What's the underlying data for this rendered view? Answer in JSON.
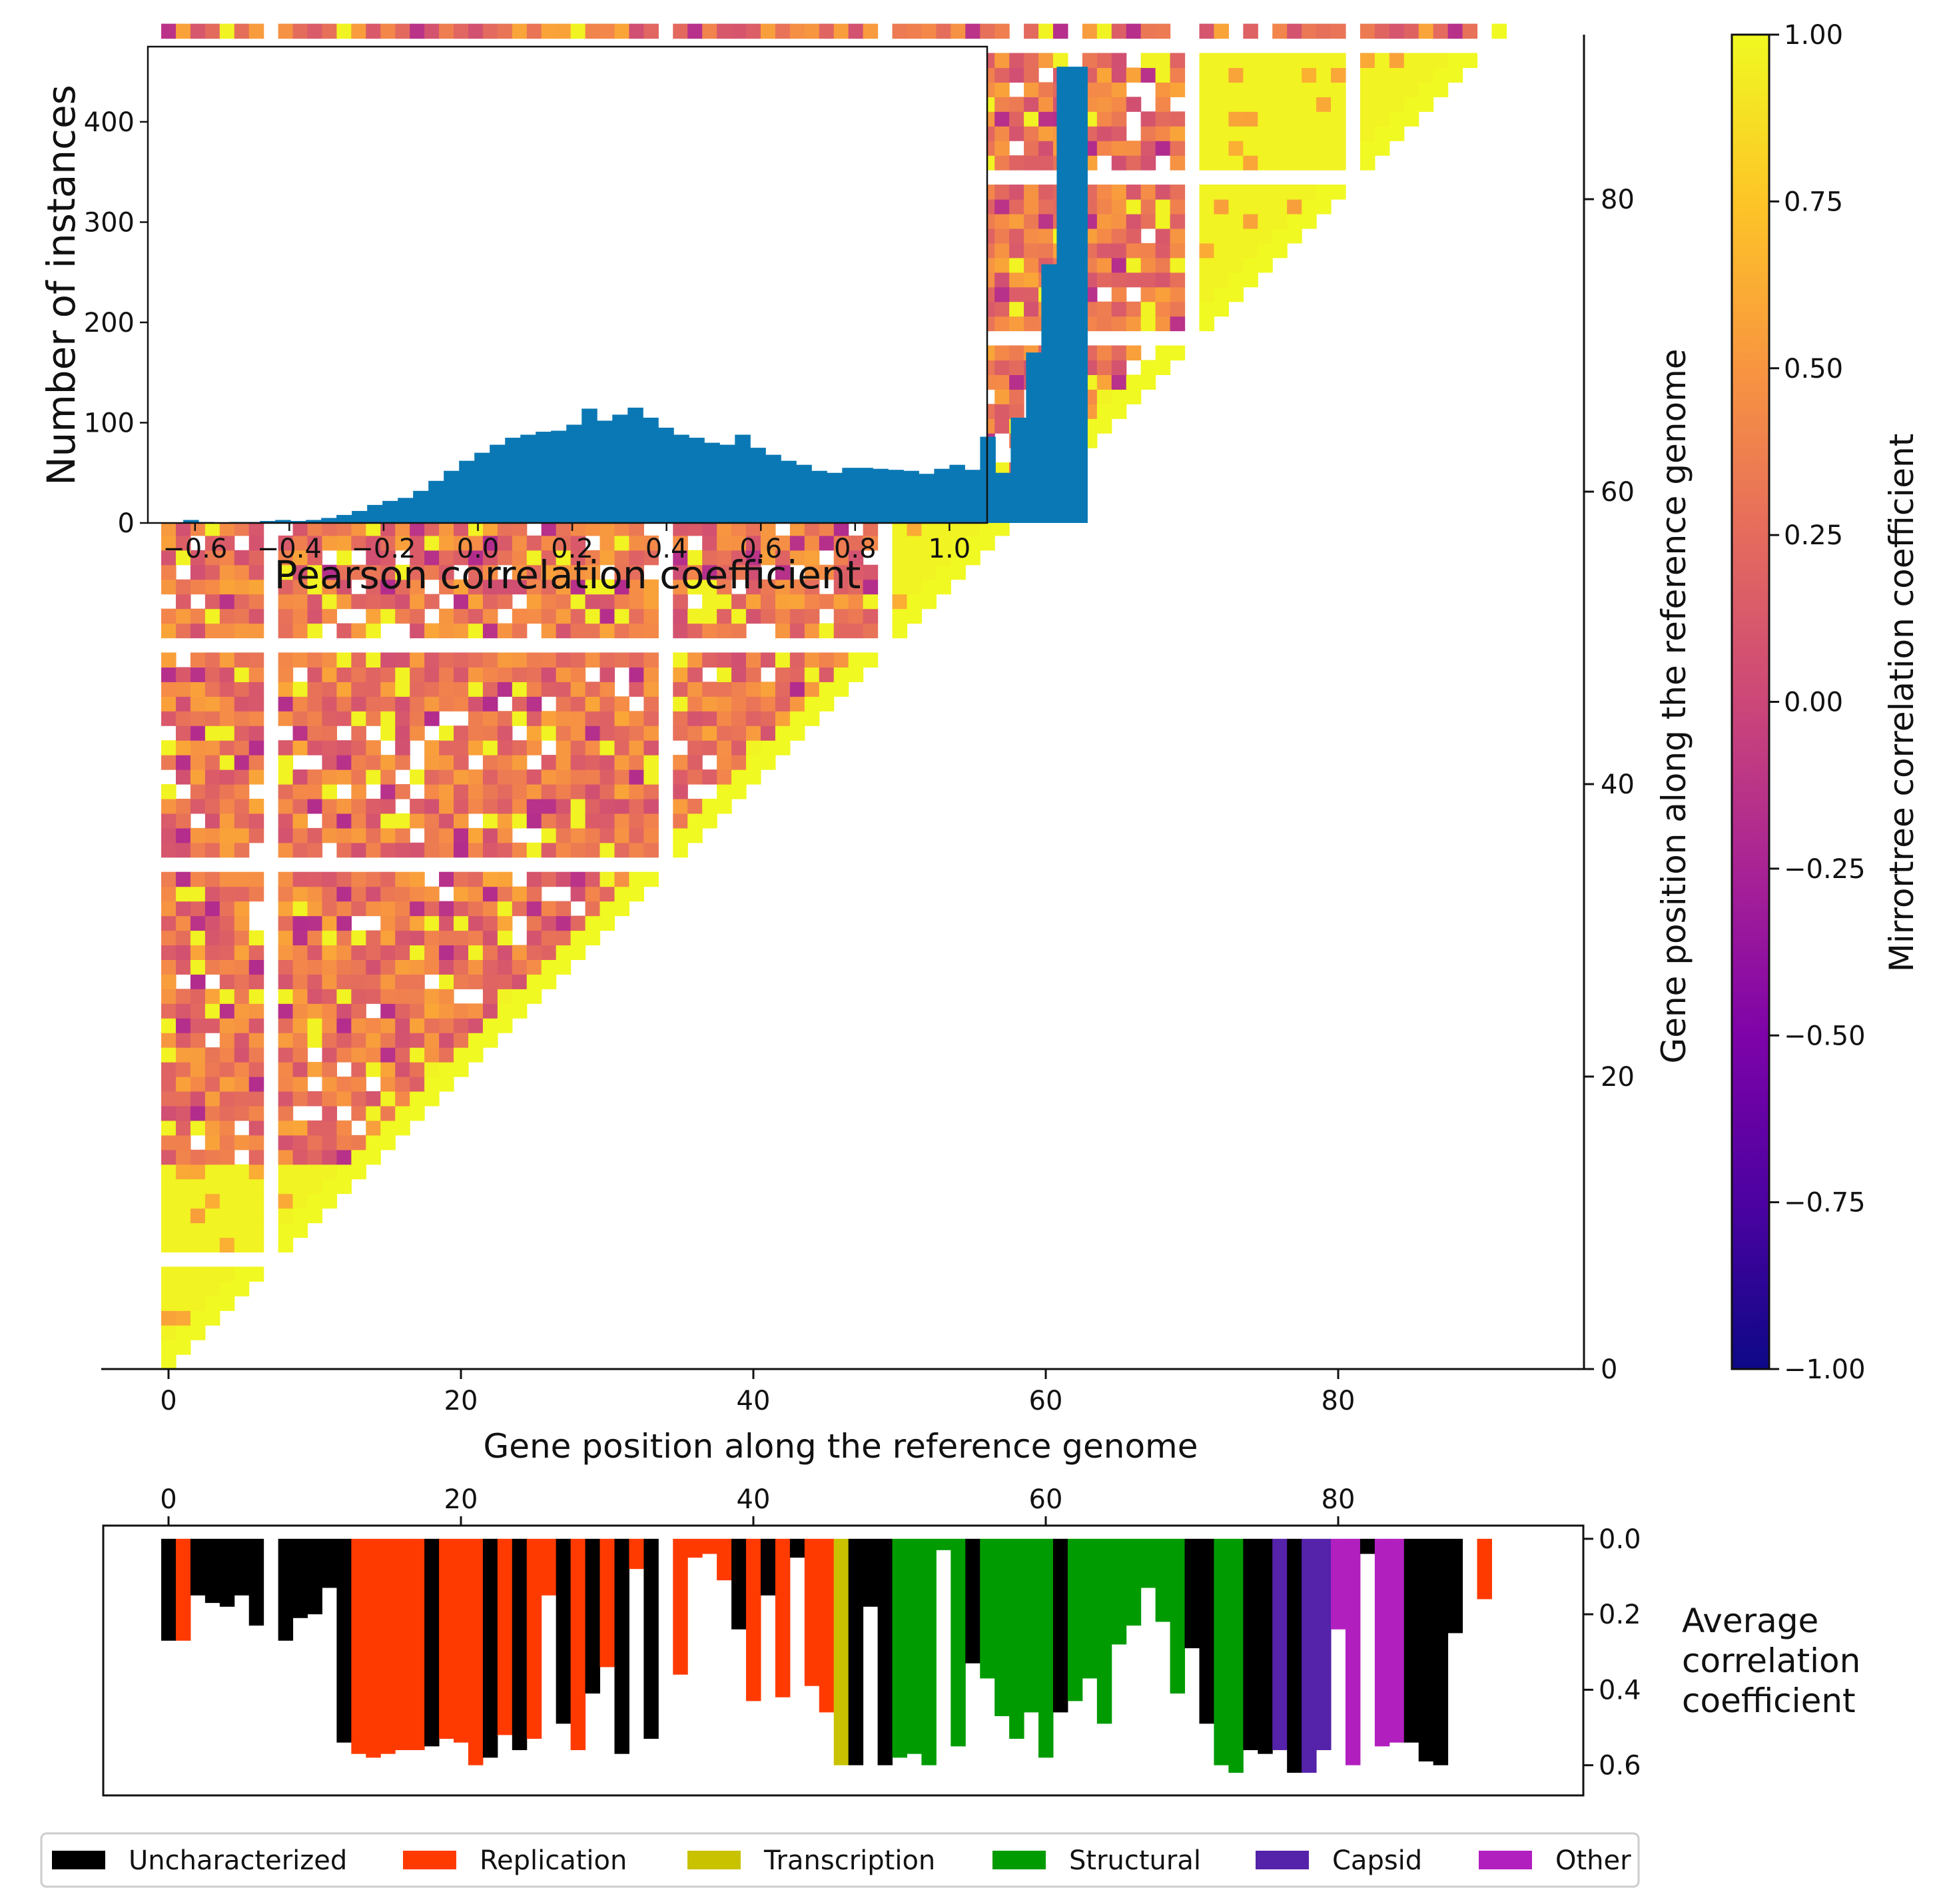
{
  "chart_data": [
    {
      "id": "mirrortree-heatmap",
      "type": "heatmap",
      "description": "Lower-triangular matrix of pairwise mirrortree correlation coefficients between genes ordered along the reference genome",
      "n_genes": 92,
      "xlabel": "Gene position along the reference genome",
      "ylabel": "Gene position along the reference genome",
      "xticks": [
        "0",
        "20",
        "40",
        "60",
        "80"
      ],
      "yticks": [
        "0",
        "20",
        "40",
        "60",
        "80"
      ],
      "tick_values": [
        0,
        20,
        40,
        60,
        80
      ],
      "missing_genes": [
        7,
        34,
        49,
        62,
        70,
        81,
        90
      ],
      "high_blocks": [
        {
          "rows": [
            0,
            13
          ],
          "cols": [
            0,
            27
          ]
        },
        {
          "rows": [
            70,
            90
          ],
          "cols": [
            70,
            88
          ]
        },
        {
          "rows": [
            13,
            22
          ],
          "cols": [
            70,
            79
          ]
        },
        {
          "rows": [
            13,
            28
          ],
          "cols": [
            50,
            55
          ]
        },
        {
          "rows": [
            40,
            57
          ],
          "cols": [
            50,
            60
          ]
        }
      ],
      "colorbar": {
        "label": "Mirrortree correlation coefficient",
        "min": -1.0,
        "max": 1.0,
        "ticks": [
          "1.00",
          "0.75",
          "0.50",
          "0.25",
          "0.00",
          "−0.25",
          "−0.50",
          "−0.75",
          "−1.00"
        ],
        "tick_values": [
          1.0,
          0.75,
          0.5,
          0.25,
          0.0,
          -0.25,
          -0.5,
          -0.75,
          -1.0
        ],
        "colormap": "plasma"
      }
    },
    {
      "id": "pearson-histogram",
      "type": "bar",
      "title": "",
      "xlabel": "Pearson correlation coefficient",
      "ylabel": "Number of instances",
      "xlim": [
        -0.7,
        1.08
      ],
      "ylim": [
        0,
        475
      ],
      "xticks": [
        "−0.6",
        "−0.4",
        "−0.2",
        "0.0",
        "0.2",
        "0.4",
        "0.6",
        "0.8",
        "1.0"
      ],
      "xtick_values": [
        -0.6,
        -0.4,
        -0.2,
        0.0,
        0.2,
        0.4,
        0.6,
        0.8,
        1.0
      ],
      "yticks": [
        "0",
        "100",
        "200",
        "300",
        "400"
      ],
      "ytick_values": [
        0,
        100,
        200,
        300,
        400
      ],
      "bin_start": -0.625,
      "bin_width": 0.0325,
      "counts": [
        3,
        1,
        0,
        1,
        1,
        2,
        3,
        2,
        3,
        5,
        8,
        12,
        18,
        22,
        25,
        32,
        42,
        52,
        62,
        70,
        78,
        85,
        88,
        91,
        92,
        98,
        114,
        102,
        108,
        115,
        105,
        95,
        88,
        85,
        80,
        78,
        88,
        75,
        68,
        62,
        58,
        52,
        50,
        55,
        55,
        54,
        53,
        52,
        49,
        54,
        58,
        53,
        86,
        50,
        105,
        170,
        258,
        455,
        455
      ]
    },
    {
      "id": "average-correlation-bars",
      "type": "bar",
      "description": "Average correlation coefficient of each gene, bars hanging downward, colored by functional category",
      "ylabel": "Average correlation coefficient",
      "ylabel_lines": [
        "Average",
        "correlation",
        "coefficient"
      ],
      "xticks": [
        "0",
        "20",
        "40",
        "60",
        "80"
      ],
      "xtick_values": [
        0,
        20,
        40,
        60,
        80
      ],
      "yticks": [
        "0.0",
        "0.2",
        "0.4",
        "0.6"
      ],
      "ytick_values": [
        0.0,
        0.2,
        0.4,
        0.6
      ],
      "ylim": [
        -0.035,
        0.68
      ],
      "values": [
        0.27,
        0.27,
        0.15,
        0.17,
        0.18,
        0.15,
        0.23,
        0.0,
        0.27,
        0.21,
        0.2,
        0.13,
        0.54,
        0.57,
        0.58,
        0.57,
        0.56,
        0.56,
        0.55,
        0.53,
        0.54,
        0.6,
        0.58,
        0.52,
        0.56,
        0.53,
        0.15,
        0.49,
        0.56,
        0.41,
        0.34,
        0.57,
        0.08,
        0.53,
        0.0,
        0.36,
        0.05,
        0.04,
        0.11,
        0.24,
        0.43,
        0.15,
        0.42,
        0.05,
        0.39,
        0.46,
        0.6,
        0.6,
        0.18,
        0.6,
        0.58,
        0.57,
        0.6,
        0.03,
        0.55,
        0.33,
        0.37,
        0.47,
        0.53,
        0.46,
        0.58,
        0.46,
        0.43,
        0.37,
        0.49,
        0.28,
        0.23,
        0.13,
        0.22,
        0.41,
        0.29,
        0.49,
        0.6,
        0.62,
        0.56,
        0.57,
        0.56,
        0.62,
        0.62,
        0.56,
        0.24,
        0.6,
        0.04,
        0.55,
        0.54,
        0.54,
        0.59,
        0.6,
        0.25,
        0.0,
        0.16,
        0.0
      ],
      "categories": [
        "U",
        "R",
        "U",
        "U",
        "U",
        "U",
        "U",
        "X",
        "U",
        "U",
        "U",
        "U",
        "U",
        "R",
        "R",
        "R",
        "R",
        "R",
        "U",
        "R",
        "R",
        "R",
        "U",
        "R",
        "U",
        "R",
        "R",
        "U",
        "R",
        "U",
        "R",
        "U",
        "R",
        "U",
        "X",
        "R",
        "R",
        "R",
        "R",
        "U",
        "R",
        "U",
        "R",
        "U",
        "R",
        "R",
        "T",
        "U",
        "U",
        "U",
        "S",
        "S",
        "S",
        "S",
        "S",
        "U",
        "S",
        "S",
        "S",
        "S",
        "S",
        "U",
        "S",
        "S",
        "S",
        "S",
        "S",
        "S",
        "S",
        "S",
        "U",
        "U",
        "S",
        "S",
        "U",
        "U",
        "C",
        "U",
        "C",
        "C",
        "O",
        "O",
        "U",
        "O",
        "O",
        "U",
        "U",
        "U",
        "U",
        "X",
        "R",
        "X"
      ],
      "legend": [
        {
          "code": "U",
          "label": "Uncharacterized",
          "color": "#000000"
        },
        {
          "code": "R",
          "label": "Replication",
          "color": "#ff3a00"
        },
        {
          "code": "T",
          "label": "Transcription",
          "color": "#c8c200"
        },
        {
          "code": "S",
          "label": "Structural",
          "color": "#009b00"
        },
        {
          "code": "C",
          "label": "Capsid",
          "color": "#5522aa"
        },
        {
          "code": "O",
          "label": "Other",
          "color": "#b21fbf"
        }
      ]
    }
  ],
  "colors": {
    "histogram_bar": "#0a78b4",
    "axis": "#111111"
  }
}
